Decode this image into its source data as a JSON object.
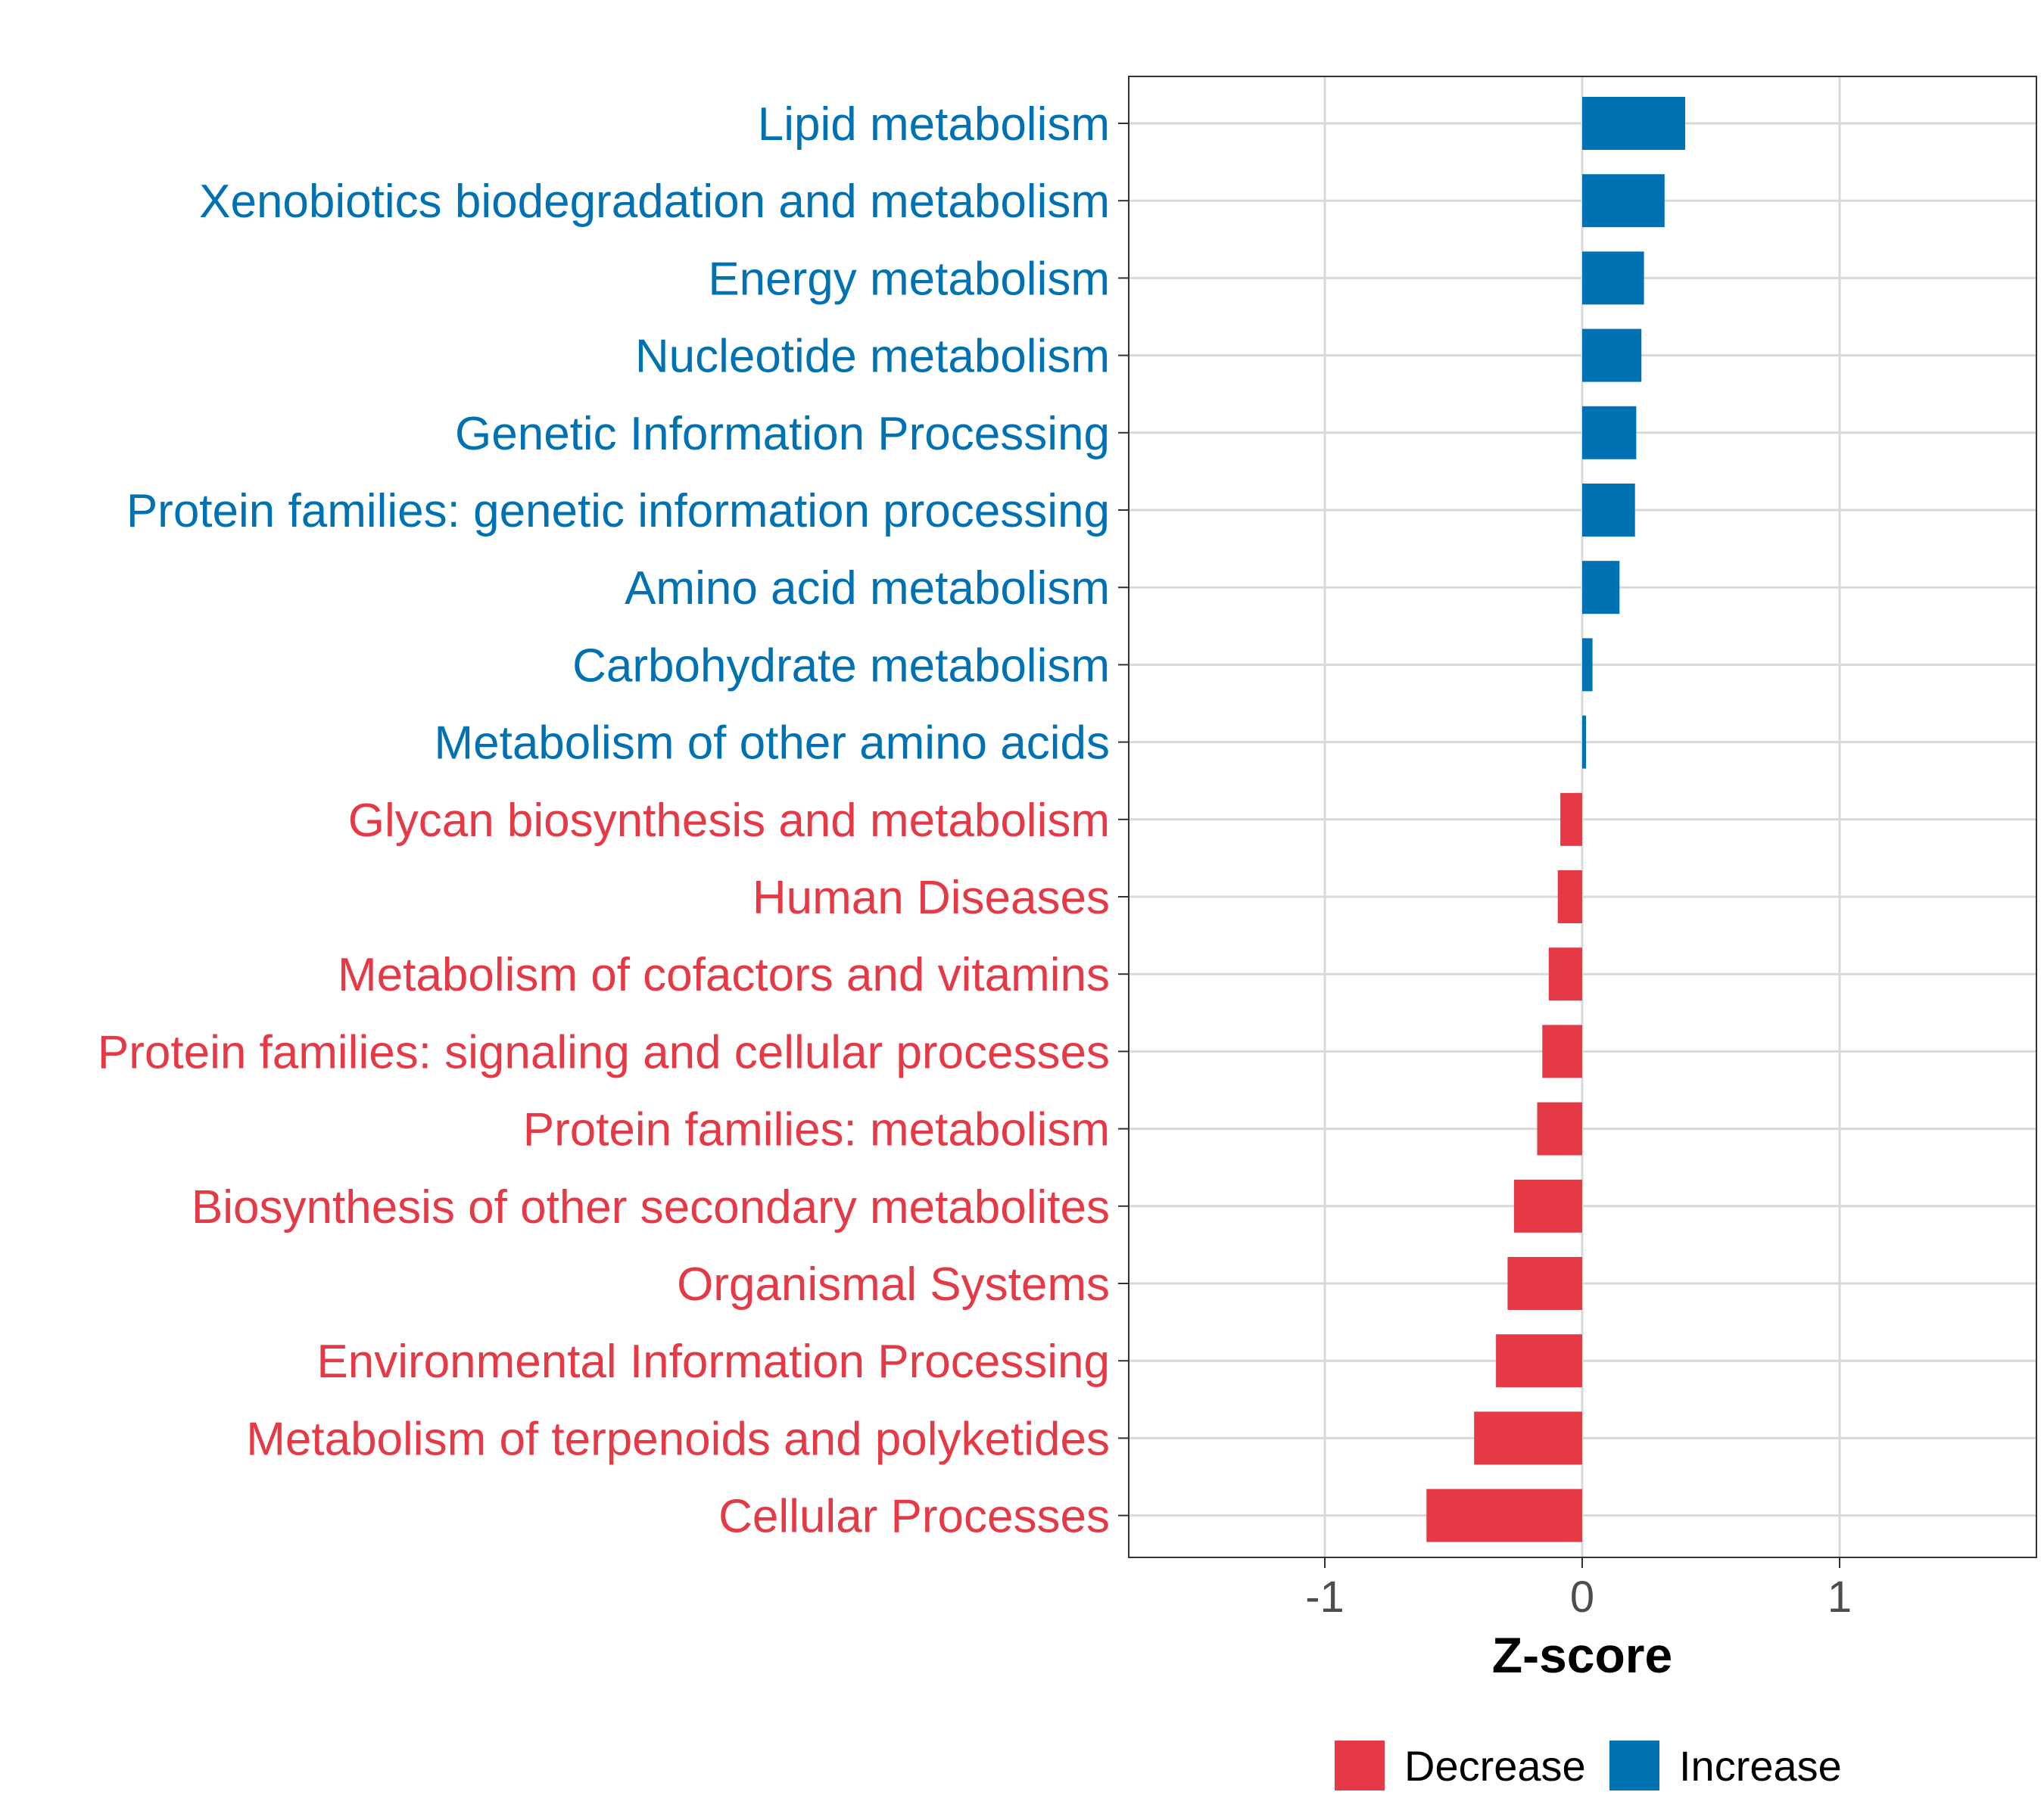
{
  "chart_data": {
    "type": "bar",
    "orientation": "horizontal",
    "xlabel": "Z-score",
    "ylabel": "",
    "xlim": [
      -1.75,
      1.75
    ],
    "xticks": [
      -1,
      0,
      1
    ],
    "xtick_labels": [
      "-1",
      "0",
      "1"
    ],
    "grid": true,
    "legend_position": "bottom",
    "colors": {
      "Decrease": "#E63946",
      "Increase": "#0071B2"
    },
    "legend": [
      {
        "label": "Decrease",
        "color": "#E63946"
      },
      {
        "label": "Increase",
        "color": "#0071B2"
      }
    ],
    "categories": [
      "Lipid metabolism",
      "Xenobiotics biodegradation and metabolism",
      "Energy metabolism",
      "Nucleotide metabolism",
      "Genetic Information Processing",
      "Protein families: genetic information processing",
      "Amino acid metabolism",
      "Carbohydrate metabolism",
      "Metabolism of other amino acids",
      "Glycan biosynthesis and metabolism",
      "Human Diseases",
      "Metabolism of cofactors and vitamins",
      "Protein families: signaling and cellular processes",
      "Protein families: metabolism",
      "Biosynthesis of other secondary metabolites",
      "Organismal Systems",
      "Environmental Information Processing",
      "Metabolism of terpenoids and polyketides",
      "Cellular Processes"
    ],
    "values": [
      0.4,
      0.32,
      0.24,
      0.23,
      0.21,
      0.205,
      0.145,
      0.04,
      0.015,
      -0.085,
      -0.095,
      -0.13,
      -0.155,
      -0.175,
      -0.265,
      -0.29,
      -0.335,
      -0.42,
      -0.605
    ],
    "groups": [
      "Increase",
      "Increase",
      "Increase",
      "Increase",
      "Increase",
      "Increase",
      "Increase",
      "Increase",
      "Increase",
      "Decrease",
      "Decrease",
      "Decrease",
      "Decrease",
      "Decrease",
      "Decrease",
      "Decrease",
      "Decrease",
      "Decrease",
      "Decrease"
    ]
  }
}
